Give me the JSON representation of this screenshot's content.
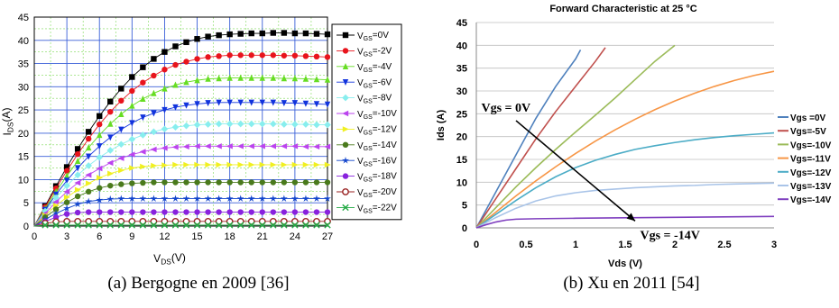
{
  "captions": {
    "a": "(a) Bergogne en 2009 [36]",
    "b": "(b) Xu en 2011 [54]"
  },
  "chart_data": [
    {
      "type": "line",
      "title": "",
      "xlabel": "V_DS(V)",
      "ylabel": "I_DS(A)",
      "xlim": [
        0,
        27
      ],
      "ylim": [
        0,
        45
      ],
      "xticks": [
        0,
        3,
        6,
        9,
        12,
        15,
        18,
        21,
        24,
        27
      ],
      "yticks": [
        0,
        5,
        10,
        15,
        20,
        25,
        30,
        35,
        40,
        45
      ],
      "grid": true,
      "legend_position": "right",
      "x": [
        0,
        1,
        2,
        3,
        4,
        5,
        6,
        7,
        8,
        9,
        10,
        11,
        12,
        13,
        14,
        15,
        16,
        17,
        18,
        19,
        20,
        21,
        22,
        23,
        24,
        25,
        26,
        27
      ],
      "series": [
        {
          "name": "V_GS=0V",
          "color": "#000000",
          "marker": "square",
          "values": [
            0,
            4.3,
            8.6,
            12.7,
            16.6,
            20.3,
            23.7,
            26.8,
            29.6,
            32.1,
            34.2,
            36.0,
            37.5,
            38.7,
            39.6,
            40.3,
            40.8,
            41.1,
            41.3,
            41.4,
            41.5,
            41.5,
            41.6,
            41.6,
            41.5,
            41.5,
            41.4,
            41.3
          ]
        },
        {
          "name": "V_GS=-2V",
          "color": "#e8141c",
          "marker": "circle",
          "values": [
            0,
            4.1,
            8.1,
            11.9,
            15.5,
            18.8,
            21.9,
            24.6,
            27.0,
            29.1,
            30.9,
            32.4,
            33.7,
            34.7,
            35.4,
            36.0,
            36.4,
            36.6,
            36.8,
            36.8,
            36.8,
            36.8,
            36.8,
            36.7,
            36.7,
            36.6,
            36.5,
            36.4
          ]
        },
        {
          "name": "V_GS=-4V",
          "color": "#66dd22",
          "marker": "triangle-up",
          "values": [
            0,
            3.8,
            7.4,
            10.8,
            14.0,
            16.9,
            19.6,
            22.0,
            24.1,
            25.9,
            27.4,
            28.6,
            29.6,
            30.4,
            31.0,
            31.4,
            31.7,
            31.8,
            31.9,
            31.9,
            31.9,
            31.9,
            31.9,
            31.8,
            31.8,
            31.7,
            31.6,
            31.5
          ]
        },
        {
          "name": "V_GS=-6V",
          "color": "#1133dd",
          "marker": "triangle-down",
          "values": [
            0,
            3.5,
            6.8,
            9.8,
            12.5,
            15.0,
            17.2,
            19.1,
            20.8,
            22.2,
            23.4,
            24.3,
            25.0,
            25.6,
            26.0,
            26.3,
            26.5,
            26.6,
            26.6,
            26.6,
            26.6,
            26.6,
            26.6,
            26.5,
            26.5,
            26.4,
            26.3,
            26.2
          ]
        },
        {
          "name": "V_GS=-8V",
          "color": "#88eeee",
          "marker": "diamond",
          "values": [
            0,
            3.2,
            6.1,
            8.7,
            11.0,
            13.0,
            14.8,
            16.3,
            17.6,
            18.7,
            19.6,
            20.3,
            20.9,
            21.3,
            21.6,
            21.8,
            21.9,
            22.0,
            22.0,
            22.0,
            22.0,
            22.0,
            22.0,
            21.9,
            21.9,
            21.9,
            21.8,
            21.8
          ]
        },
        {
          "name": "V_GS=-10V",
          "color": "#bb44ee",
          "marker": "triangle-left",
          "values": [
            0,
            2.7,
            5.2,
            7.4,
            9.3,
            11.0,
            12.4,
            13.6,
            14.6,
            15.4,
            16.0,
            16.5,
            16.8,
            17.0,
            17.1,
            17.2,
            17.2,
            17.2,
            17.2,
            17.2,
            17.2,
            17.2,
            17.2,
            17.2,
            17.2,
            17.1,
            17.1,
            17.1
          ]
        },
        {
          "name": "V_GS=-12V",
          "color": "#f0f020",
          "marker": "triangle-right",
          "values": [
            0,
            2.3,
            4.4,
            6.2,
            7.8,
            9.2,
            10.4,
            11.3,
            12.0,
            12.5,
            12.8,
            13.0,
            13.1,
            13.2,
            13.2,
            13.2,
            13.2,
            13.2,
            13.2,
            13.2,
            13.2,
            13.2,
            13.2,
            13.2,
            13.2,
            13.2,
            13.2,
            13.2
          ]
        },
        {
          "name": "V_GS=-14V",
          "color": "#4a7a1c",
          "marker": "circle",
          "values": [
            0,
            1.9,
            3.6,
            5.1,
            6.4,
            7.4,
            8.2,
            8.7,
            9.0,
            9.2,
            9.3,
            9.4,
            9.4,
            9.4,
            9.4,
            9.4,
            9.4,
            9.4,
            9.4,
            9.4,
            9.4,
            9.4,
            9.4,
            9.4,
            9.4,
            9.4,
            9.4,
            9.4
          ]
        },
        {
          "name": "V_GS=-16V",
          "color": "#1144cc",
          "marker": "star",
          "values": [
            0,
            1.4,
            2.7,
            3.8,
            4.7,
            5.3,
            5.6,
            5.8,
            5.9,
            5.9,
            5.9,
            5.9,
            5.9,
            5.9,
            5.9,
            5.9,
            5.9,
            5.9,
            5.9,
            5.9,
            5.9,
            5.9,
            5.9,
            5.9,
            5.9,
            5.9,
            5.9,
            5.9
          ]
        },
        {
          "name": "V_GS=-18V",
          "color": "#8822dd",
          "marker": "circle",
          "values": [
            0,
            1.0,
            1.9,
            2.6,
            2.9,
            3.0,
            3.0,
            3.0,
            3.0,
            3.0,
            3.0,
            3.0,
            3.0,
            3.0,
            3.0,
            3.0,
            3.0,
            3.0,
            3.0,
            3.0,
            3.0,
            3.0,
            3.0,
            3.0,
            3.0,
            3.0,
            3.0,
            3.0
          ]
        },
        {
          "name": "V_GS=-20V",
          "color": "#992222",
          "marker": "circle-open",
          "values": [
            0,
            0.6,
            0.9,
            1.0,
            1.0,
            1.0,
            1.0,
            1.0,
            1.0,
            1.0,
            1.0,
            1.0,
            1.0,
            1.0,
            1.0,
            1.0,
            1.0,
            1.0,
            1.0,
            1.0,
            1.0,
            1.0,
            1.0,
            1.0,
            1.0,
            1.0,
            1.0,
            1.0
          ]
        },
        {
          "name": "V_GS=-22V",
          "color": "#22aa44",
          "marker": "x",
          "values": [
            0,
            0.2,
            0.2,
            0.2,
            0.2,
            0.2,
            0.2,
            0.2,
            0.2,
            0.2,
            0.2,
            0.2,
            0.2,
            0.2,
            0.2,
            0.2,
            0.2,
            0.2,
            0.2,
            0.2,
            0.2,
            0.2,
            0.2,
            0.2,
            0.2,
            0.2,
            0.2,
            0.2
          ]
        }
      ]
    },
    {
      "type": "line",
      "title": "Forward Characteristic at 25 °C",
      "xlabel": "Vds (V)",
      "ylabel": "Ids (A)",
      "xlim": [
        0,
        3
      ],
      "ylim": [
        0,
        45
      ],
      "xticks": [
        0,
        0.5,
        1,
        1.5,
        2,
        2.5,
        3
      ],
      "yticks": [
        0,
        5,
        10,
        15,
        20,
        25,
        30,
        35,
        40,
        45
      ],
      "grid": true,
      "legend_position": "right",
      "annotations": [
        {
          "text": "Vgs = 0V",
          "x": 0.05,
          "y": 25.5
        },
        {
          "text": "Vgs = -14V",
          "x": 1.65,
          "y": -0.5
        },
        {
          "text": "",
          "arrow_from": [
            0.4,
            23.5
          ],
          "arrow_to": [
            1.6,
            1.5
          ]
        }
      ],
      "series": [
        {
          "name": "Vgs =0V",
          "color": "#4f81bd",
          "x": [
            0,
            0.2,
            0.4,
            0.6,
            0.8,
            1.0,
            1.05
          ],
          "values": [
            0,
            8,
            16,
            24,
            31,
            37,
            39
          ]
        },
        {
          "name": "Vgs=-5V",
          "color": "#c0504d",
          "x": [
            0,
            0.2,
            0.4,
            0.6,
            0.8,
            1.0,
            1.2,
            1.3
          ],
          "values": [
            0,
            6.5,
            13,
            19.5,
            25.5,
            31,
            36.5,
            39.5
          ]
        },
        {
          "name": "Vgs=-10V",
          "color": "#9bbb59",
          "x": [
            0,
            0.2,
            0.4,
            0.6,
            0.8,
            1.0,
            1.2,
            1.4,
            1.6,
            1.8,
            2.0
          ],
          "values": [
            0,
            4.5,
            9,
            13.2,
            17.2,
            21,
            24.7,
            28.5,
            32.5,
            36.5,
            40
          ]
        },
        {
          "name": "Vgs=-11V",
          "color": "#f79646",
          "x": [
            0,
            0.2,
            0.4,
            0.6,
            0.8,
            1.0,
            1.2,
            1.4,
            1.6,
            1.8,
            2.0,
            2.2,
            2.4,
            2.6,
            2.8,
            3.0
          ],
          "values": [
            0,
            3.5,
            7,
            10.3,
            13.4,
            16.3,
            19,
            21.5,
            23.8,
            25.9,
            27.8,
            29.5,
            31,
            32.3,
            33.4,
            34.3
          ]
        },
        {
          "name": "Vgs=-12V",
          "color": "#4bacc6",
          "x": [
            0,
            0.2,
            0.4,
            0.6,
            0.8,
            1.0,
            1.2,
            1.4,
            1.6,
            1.8,
            2.0,
            2.2,
            2.4,
            2.6,
            2.8,
            3.0
          ],
          "values": [
            0,
            3,
            6,
            8.8,
            11.2,
            13.2,
            14.8,
            16.1,
            17.2,
            18.0,
            18.7,
            19.3,
            19.8,
            20.2,
            20.5,
            20.8
          ]
        },
        {
          "name": "Vgs=-13V",
          "color": "#a9c4e8",
          "x": [
            0,
            0.2,
            0.4,
            0.6,
            0.8,
            1.0,
            1.2,
            1.4,
            1.6,
            1.8,
            2.0,
            2.2,
            2.4,
            2.6,
            2.8,
            3.0
          ],
          "values": [
            0,
            2.3,
            4.3,
            5.9,
            7.0,
            7.7,
            8.2,
            8.5,
            8.8,
            9.0,
            9.2,
            9.3,
            9.5,
            9.6,
            9.7,
            9.8
          ]
        },
        {
          "name": "Vgs=-14V",
          "color": "#7f3fbf",
          "x": [
            0,
            0.1,
            0.2,
            0.3,
            0.4,
            0.6,
            1.0,
            1.5,
            2.0,
            2.5,
            3.0
          ],
          "values": [
            0,
            0.7,
            1.3,
            1.7,
            1.9,
            2.0,
            2.1,
            2.2,
            2.3,
            2.4,
            2.5
          ]
        }
      ]
    }
  ]
}
